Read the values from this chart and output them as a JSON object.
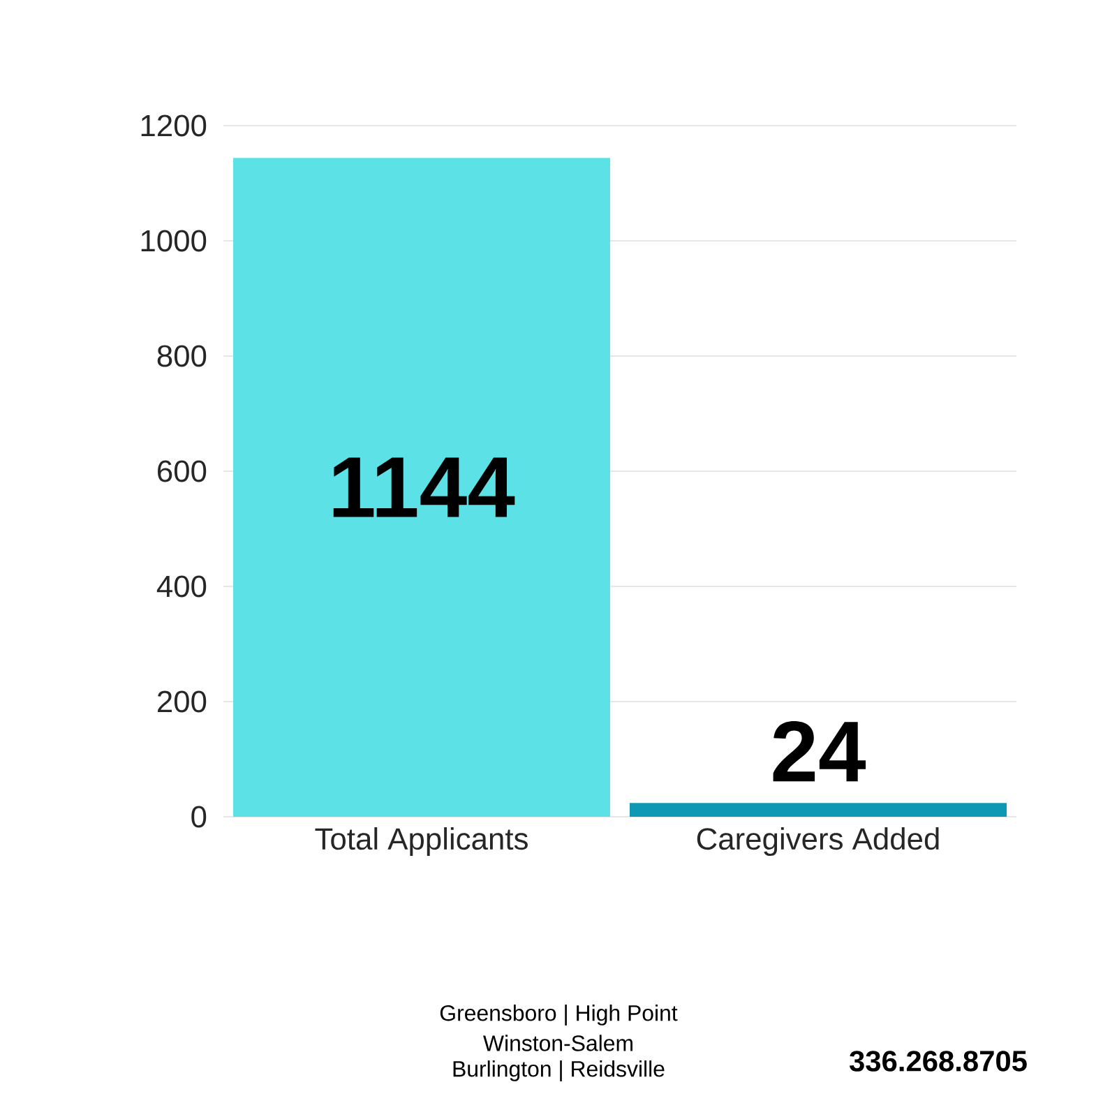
{
  "chart_data": {
    "type": "bar",
    "categories": [
      "Total Applicants",
      "Caregivers Added"
    ],
    "values": [
      1144,
      24
    ],
    "colors": [
      "#5ce1e6",
      "#0f98b3"
    ],
    "ylim": [
      0,
      1200
    ],
    "yticks": [
      0,
      200,
      400,
      600,
      800,
      1000,
      1200
    ],
    "grid": "y",
    "data_labels": true,
    "annotations": [
      "Greensboro | High Point",
      "Winston-Salem",
      "Burlington | Reidsville",
      "336.268.8705"
    ]
  }
}
